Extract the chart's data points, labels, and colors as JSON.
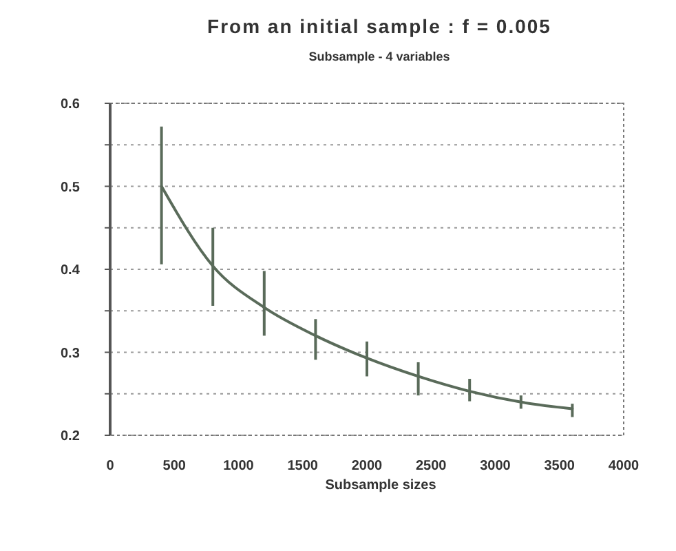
{
  "chart_data": {
    "type": "line",
    "title": "From an initial sample : f = 0.005",
    "subtitle": "Subsample - 4 variables",
    "xlabel": "Subsample sizes",
    "x": [
      400,
      800,
      1200,
      1600,
      2000,
      2400,
      2800,
      3200,
      3600
    ],
    "series": [
      {
        "color": "#5a6b5a",
        "values": [
          0.5,
          0.404,
          0.354,
          0.32,
          0.293,
          0.271,
          0.253,
          0.24,
          0.232
        ],
        "errors": [
          [
            0.406,
            0.572
          ],
          [
            0.356,
            0.45
          ],
          [
            0.32,
            0.398
          ],
          [
            0.291,
            0.34
          ],
          [
            0.271,
            0.313
          ],
          [
            0.248,
            0.288
          ],
          [
            0.241,
            0.268
          ],
          [
            0.232,
            0.248
          ],
          [
            0.222,
            0.238
          ]
        ]
      }
    ],
    "xlim": [
      0,
      4000
    ],
    "xticks": [
      0,
      500,
      1000,
      1500,
      2000,
      2500,
      3000,
      3500,
      4000
    ],
    "ylim": [
      0.2,
      0.6
    ],
    "yticks": [
      {
        "value": 0.2,
        "label": "0.2"
      },
      {
        "value": 0.25,
        "label": null
      },
      {
        "value": 0.3,
        "label": "0.3"
      },
      {
        "value": 0.35,
        "label": null
      },
      {
        "value": 0.4,
        "label": "0.4"
      },
      {
        "value": 0.45,
        "label": null
      },
      {
        "value": 0.5,
        "label": "0.5"
      },
      {
        "value": 0.55,
        "label": null
      },
      {
        "value": 0.6,
        "label": "0.6"
      }
    ],
    "grid": "y",
    "marker": "none",
    "line_style": "solid"
  }
}
